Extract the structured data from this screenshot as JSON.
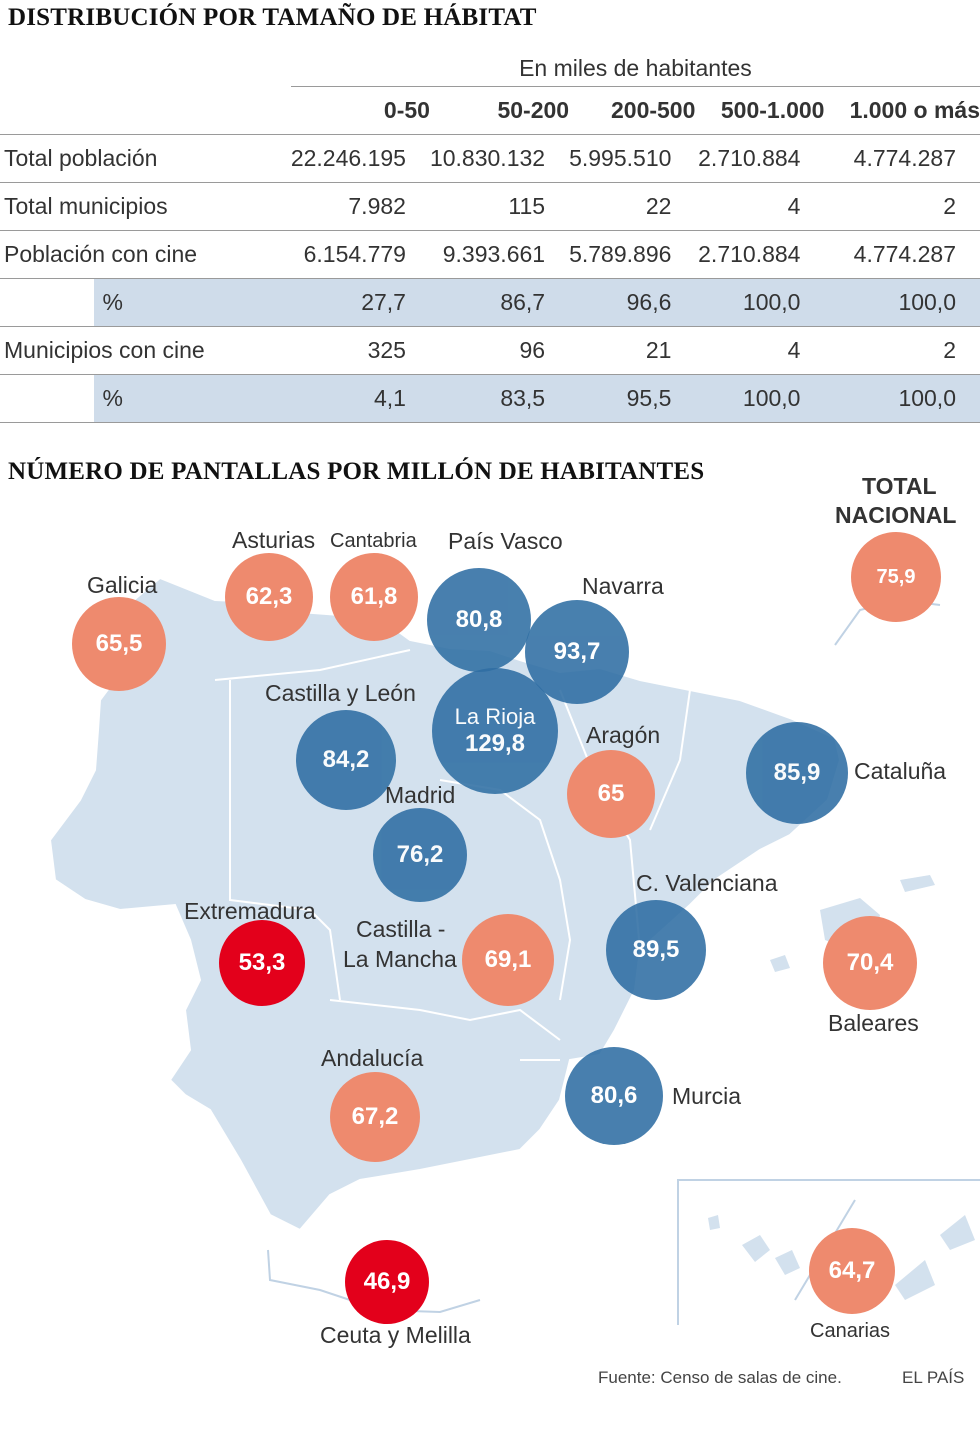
{
  "table": {
    "title": "DISTRIBUCIÓN POR TAMAÑO DE HÁBITAT",
    "unit": "En miles de habitantes",
    "columns": [
      "0-50",
      "50-200",
      "200-500",
      "500-1.000",
      "1.000 o más"
    ],
    "rows": [
      {
        "label": "Total población",
        "values": [
          "22.246.195",
          "10.830.132",
          "5.995.510",
          "2.710.884",
          "4.774.287"
        ]
      },
      {
        "label": "Total municipios",
        "values": [
          "7.982",
          "115",
          "22",
          "4",
          "2"
        ]
      },
      {
        "label": "Población con cine",
        "values": [
          "6.154.779",
          "9.393.661",
          "5.789.896",
          "2.710.884",
          "4.774.287"
        ]
      },
      {
        "label": "%",
        "values": [
          "27,7",
          "86,7",
          "96,6",
          "100,0",
          "100,0"
        ]
      },
      {
        "label": "Municipios con cine",
        "values": [
          "325",
          "96",
          "21",
          "4",
          "2"
        ]
      },
      {
        "label": "%",
        "values": [
          "4,1",
          "83,5",
          "95,5",
          "100,0",
          "100,0"
        ]
      }
    ]
  },
  "map": {
    "title": "NÚMERO DE PANTALLAS POR MILLÓN DE HABITANTES",
    "total": {
      "label_line1": "TOTAL",
      "label_line2": "NACIONAL",
      "value": "75,9"
    },
    "regions": [
      {
        "name": "Galicia",
        "value": "65,5",
        "color": "#ee8a6e"
      },
      {
        "name": "Asturias",
        "value": "62,3",
        "color": "#ee8a6e"
      },
      {
        "name": "Cantabria",
        "value": "61,8",
        "color": "#ee8a6e"
      },
      {
        "name": "País Vasco",
        "value": "80,8",
        "color": "#2f6ea3"
      },
      {
        "name": "Navarra",
        "value": "93,7",
        "color": "#2f6ea3"
      },
      {
        "name": "Castilla y León",
        "value": "84,2",
        "color": "#2f6ea3"
      },
      {
        "name": "La Rioja",
        "value": "129,8",
        "color": "#2f6ea3"
      },
      {
        "name": "Aragón",
        "value": "65",
        "color": "#ee8a6e"
      },
      {
        "name": "Cataluña",
        "value": "85,9",
        "color": "#2f6ea3"
      },
      {
        "name": "Madrid",
        "value": "76,2",
        "color": "#2f6ea3"
      },
      {
        "name": "Extremadura",
        "value": "53,3",
        "color": "#e3001b"
      },
      {
        "name_line1": "Castilla -",
        "name_line2": "La Mancha",
        "value": "69,1",
        "color": "#ee8a6e"
      },
      {
        "name": "C. Valenciana",
        "value": "89,5",
        "color": "#2f6ea3"
      },
      {
        "name": "Baleares",
        "value": "70,4",
        "color": "#ee8a6e"
      },
      {
        "name": "Andalucía",
        "value": "67,2",
        "color": "#ee8a6e"
      },
      {
        "name": "Murcia",
        "value": "80,6",
        "color": "#2f6ea3"
      },
      {
        "name": "Ceuta y Melilla",
        "value": "46,9",
        "color": "#e3001b"
      },
      {
        "name": "Canarias",
        "value": "64,7",
        "color": "#ee8a6e"
      }
    ],
    "map_fill": "#d3e1ee"
  },
  "footer": {
    "source": "Fuente: Censo de salas de cine.",
    "brand": "EL PAÍS"
  }
}
